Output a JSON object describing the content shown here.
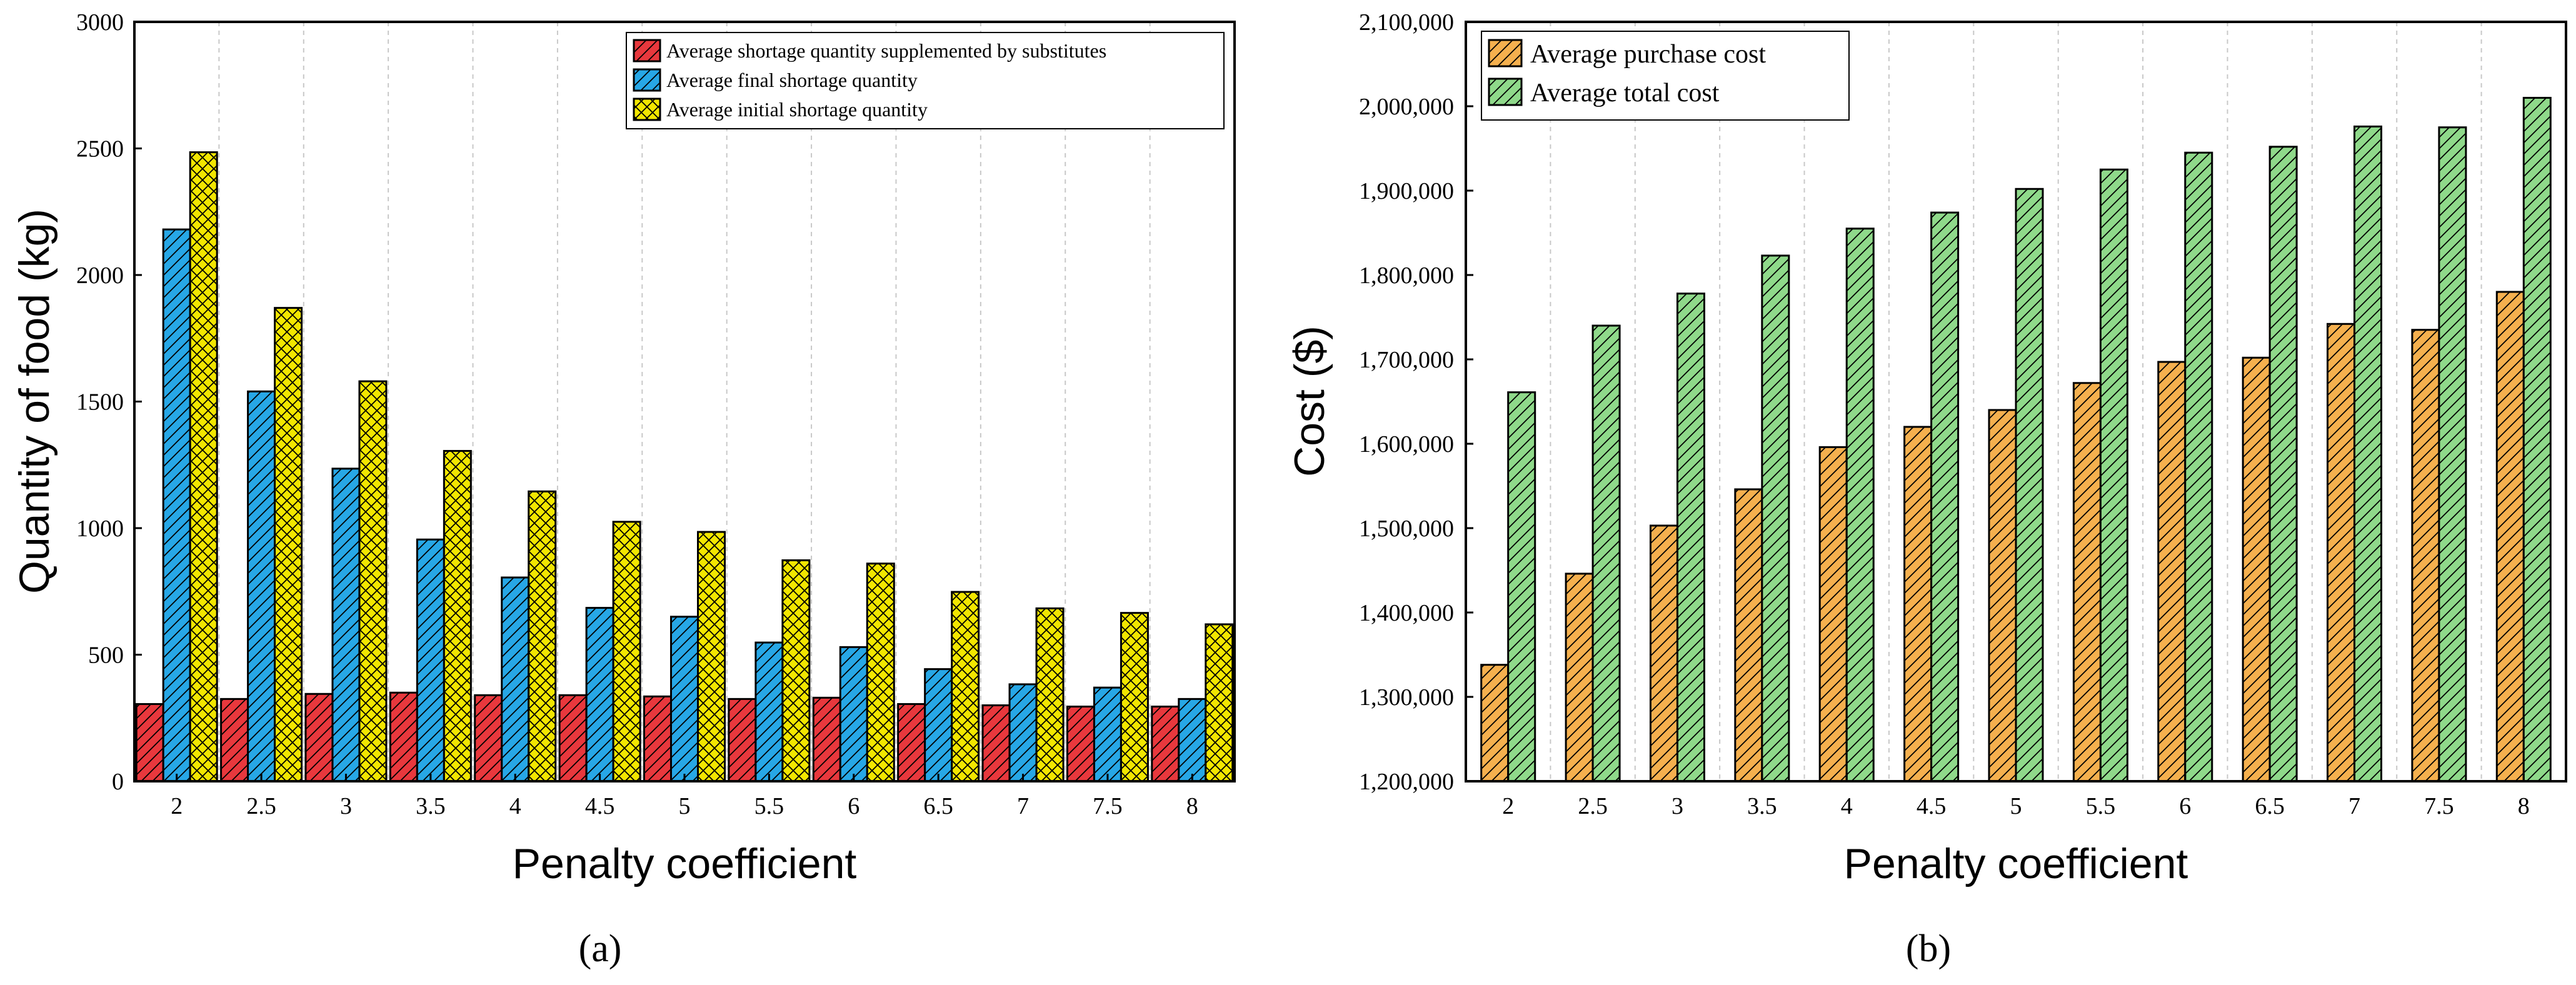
{
  "chart_data": [
    {
      "type": "bar",
      "panel_label": "(a)",
      "title": "",
      "xlabel": "Penalty coefficient",
      "ylabel": "Quantity of  food (kg)",
      "ylim": [
        0,
        3000
      ],
      "yticks": [
        "0",
        "500",
        "1000",
        "1500",
        "2000",
        "2500",
        "3000"
      ],
      "categories": [
        "2",
        "2.5",
        "3",
        "3.5",
        "4",
        "4.5",
        "5",
        "5.5",
        "6",
        "6.5",
        "7",
        "7.5",
        "8"
      ],
      "legend_position": "top-right",
      "grid": "vertical dashed",
      "series": [
        {
          "name": "Average shortage quantity supplemented by substitutes",
          "color": "#e8383d",
          "pattern": "diagonal",
          "values": [
            305,
            325,
            345,
            350,
            340,
            340,
            335,
            325,
            330,
            305,
            300,
            295,
            295
          ]
        },
        {
          "name": "Average final shortage quantity",
          "color": "#27a7e6",
          "pattern": "diagonal",
          "values": [
            2180,
            1540,
            1235,
            955,
            805,
            685,
            650,
            548,
            530,
            443,
            383,
            370,
            325
          ]
        },
        {
          "name": "Average initial shortage quantity",
          "color": "#f2e600",
          "pattern": "crosshatch",
          "values": [
            2485,
            1870,
            1580,
            1305,
            1145,
            1025,
            985,
            873,
            860,
            748,
            683,
            665,
            620
          ]
        }
      ]
    },
    {
      "type": "bar",
      "panel_label": "(b)",
      "title": "",
      "xlabel": "Penalty coefficient",
      "ylabel": "Cost ($)",
      "ylim": [
        1200000,
        2100000
      ],
      "yticks": [
        "1,200,000",
        "1,300,000",
        "1,400,000",
        "1,500,000",
        "1,600,000",
        "1,700,000",
        "1,800,000",
        "1,900,000",
        "2,000,000",
        "2,100,000"
      ],
      "categories": [
        "2",
        "2.5",
        "3",
        "3.5",
        "4",
        "4.5",
        "5",
        "5.5",
        "6",
        "6.5",
        "7",
        "7.5",
        "8"
      ],
      "legend_position": "top-left",
      "grid": "vertical dashed",
      "series": [
        {
          "name": "Average purchase cost",
          "color": "#f5b04e",
          "pattern": "diagonal",
          "values": [
            1338000,
            1446000,
            1503000,
            1546000,
            1596000,
            1620000,
            1640000,
            1672000,
            1697000,
            1702000,
            1742000,
            1735000,
            1780000
          ]
        },
        {
          "name": "Average total cost",
          "color": "#8fd98a",
          "pattern": "diagonal",
          "values": [
            1661000,
            1740000,
            1778000,
            1823000,
            1855000,
            1874000,
            1902000,
            1925000,
            1945000,
            1952000,
            1976000,
            1975000,
            2010000
          ]
        }
      ]
    }
  ]
}
